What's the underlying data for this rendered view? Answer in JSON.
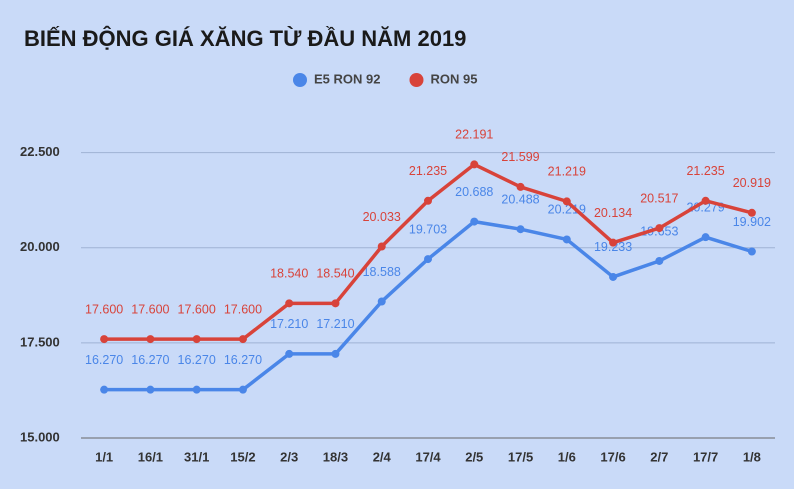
{
  "chart_data": {
    "type": "line",
    "title": "BIẾN ĐỘNG GIÁ XĂNG TỪ ĐẦU NĂM 2019",
    "categories": [
      "1/1",
      "16/1",
      "31/1",
      "15/2",
      "2/3",
      "18/3",
      "2/4",
      "17/4",
      "2/5",
      "17/5",
      "1/6",
      "17/6",
      "2/7",
      "17/7",
      "1/8"
    ],
    "series": [
      {
        "name": "E5 RON 92",
        "color": "#4a86e8",
        "values": [
          16270,
          16270,
          16270,
          16270,
          17210,
          17210,
          18588,
          19703,
          20688,
          20488,
          20219,
          19233,
          19653,
          20279,
          19902
        ],
        "value_labels": [
          "16.270",
          "16.270",
          "16.270",
          "16.270",
          "17.210",
          "17.210",
          "18.588",
          "19.703",
          "20.688",
          "20.488",
          "20.219",
          "19.233",
          "19.653",
          "20.279",
          "19.902"
        ]
      },
      {
        "name": "RON 95",
        "color": "#d8433a",
        "values": [
          17600,
          17600,
          17600,
          17600,
          18540,
          18540,
          20033,
          21235,
          22191,
          21599,
          21219,
          20134,
          20517,
          21235,
          20919
        ],
        "value_labels": [
          "17.600",
          "17.600",
          "17.600",
          "17.600",
          "18.540",
          "18.540",
          "20.033",
          "21.235",
          "22.191",
          "21.599",
          "21.219",
          "20.134",
          "20.517",
          "21.235",
          "20.919"
        ]
      }
    ],
    "ylim": [
      15000,
      23700
    ],
    "yticks": [
      {
        "value": 15000,
        "label": "15.000"
      },
      {
        "value": 17500,
        "label": "17.500"
      },
      {
        "value": 20000,
        "label": "20.000"
      },
      {
        "value": 22500,
        "label": "22.500"
      }
    ],
    "grid": true
  }
}
